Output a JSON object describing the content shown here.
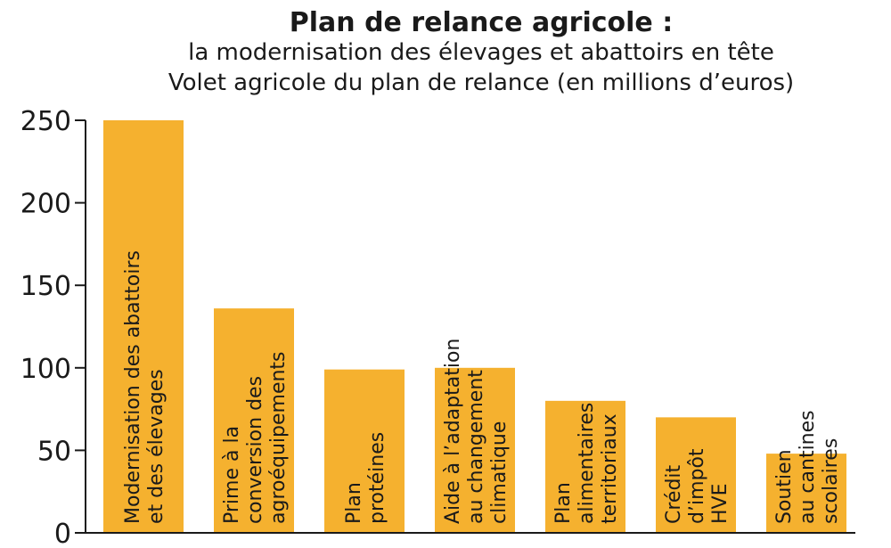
{
  "chart_data": {
    "type": "bar",
    "title": "Plan de relance agricole :",
    "subtitle_lines": [
      "la modernisation des élevages et abattoirs en tête",
      "Volet agricole du plan de relance (en millions d’euros)"
    ],
    "categories": [
      [
        "Modernisation des abattoirs",
        "et des élevages"
      ],
      [
        "Prime à la",
        "conversion des",
        "agroéquipements"
      ],
      [
        "Plan",
        "protéines"
      ],
      [
        "Aide à l’adaptation",
        "au changement",
        "climatique"
      ],
      [
        "Plan",
        "alimentaires",
        "territoriaux"
      ],
      [
        "Crédit",
        "d’impôt",
        "HVE"
      ],
      [
        "Soutien",
        "au cantines",
        "scolaires"
      ]
    ],
    "values": [
      250,
      136,
      99,
      100,
      80,
      70,
      48
    ],
    "ylim": [
      0,
      250
    ],
    "yticks": [
      0,
      50,
      100,
      150,
      200,
      250
    ],
    "bar_color": "#F5B12F",
    "axis_color": "#1a1a1a",
    "grid": false
  }
}
